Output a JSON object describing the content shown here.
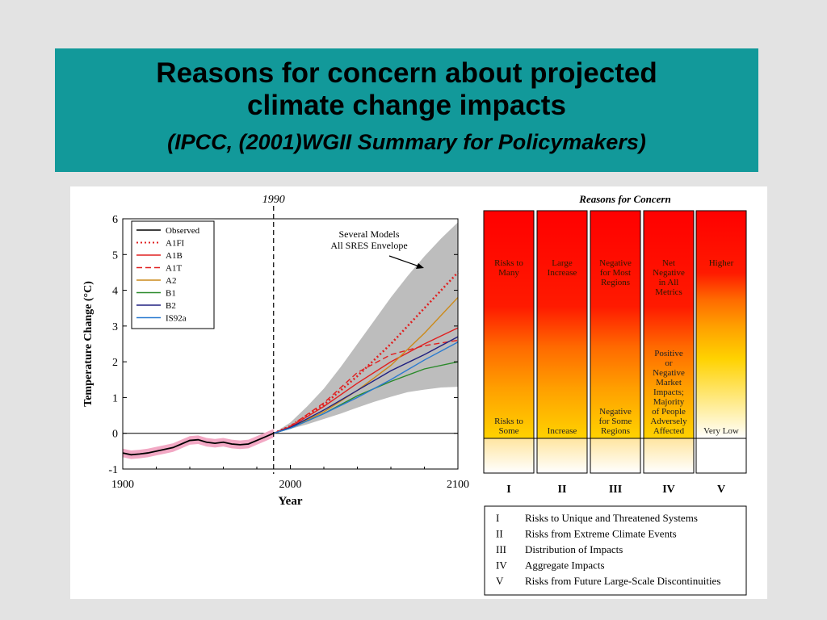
{
  "title": {
    "line1": "Reasons for concern about projected",
    "line2": "climate change impacts",
    "subtitle": "(IPCC, (2001)WGII Summary for Policymakers)"
  },
  "chart_data": [
    {
      "type": "line",
      "xlabel": "Year",
      "ylabel": "Temperature Change (°C)",
      "xlim": [
        1900,
        2100
      ],
      "ylim": [
        -1,
        6
      ],
      "x_ticks": [
        1900,
        2000,
        2100
      ],
      "y_ticks": [
        -1,
        0,
        1,
        2,
        3,
        4,
        5,
        6
      ],
      "marker_line": {
        "x": 1990,
        "label": "1990"
      },
      "annotation": {
        "line1": "Several Models",
        "line2": "All SRES Envelope"
      },
      "legend_position": "top-left",
      "envelope": {
        "x": [
          1990,
          2000,
          2010,
          2020,
          2030,
          2040,
          2050,
          2060,
          2070,
          2080,
          2090,
          2100
        ],
        "upper": [
          0,
          0.3,
          0.75,
          1.25,
          1.85,
          2.5,
          3.15,
          3.8,
          4.4,
          4.95,
          5.45,
          5.9
        ],
        "lower": [
          0,
          0.12,
          0.25,
          0.4,
          0.55,
          0.72,
          0.88,
          1.02,
          1.15,
          1.22,
          1.28,
          1.3
        ]
      },
      "observed": {
        "x": [
          1900,
          1905,
          1910,
          1915,
          1920,
          1925,
          1930,
          1935,
          1940,
          1945,
          1950,
          1955,
          1960,
          1965,
          1970,
          1975,
          1980,
          1985,
          1990
        ],
        "y": [
          -0.55,
          -0.6,
          -0.58,
          -0.55,
          -0.5,
          -0.45,
          -0.4,
          -0.3,
          -0.2,
          -0.18,
          -0.25,
          -0.28,
          -0.25,
          -0.3,
          -0.32,
          -0.3,
          -0.2,
          -0.1,
          0
        ]
      },
      "series": [
        {
          "name": "Observed",
          "color": "#000000",
          "dash": "solid",
          "values": []
        },
        {
          "name": "A1FI",
          "color": "#e02020",
          "dash": "dotted",
          "x": [
            1990,
            2000,
            2020,
            2040,
            2060,
            2080,
            2100
          ],
          "values": [
            0,
            0.2,
            0.8,
            1.6,
            2.5,
            3.5,
            4.5
          ]
        },
        {
          "name": "A1B",
          "color": "#e02020",
          "dash": "solid",
          "x": [
            1990,
            2000,
            2020,
            2040,
            2060,
            2080,
            2100
          ],
          "values": [
            0,
            0.18,
            0.75,
            1.4,
            2.0,
            2.5,
            2.95
          ]
        },
        {
          "name": "A1T",
          "color": "#e02020",
          "dash": "dashed",
          "x": [
            1990,
            2000,
            2020,
            2040,
            2060,
            2080,
            2100
          ],
          "values": [
            0,
            0.2,
            0.85,
            1.7,
            2.2,
            2.45,
            2.6
          ]
        },
        {
          "name": "A2",
          "color": "#cc8a1a",
          "dash": "solid",
          "x": [
            1990,
            2000,
            2020,
            2040,
            2060,
            2080,
            2100
          ],
          "values": [
            0,
            0.15,
            0.6,
            1.2,
            1.9,
            2.8,
            3.8
          ]
        },
        {
          "name": "B1",
          "color": "#2a8a2a",
          "dash": "solid",
          "x": [
            1990,
            2000,
            2020,
            2040,
            2060,
            2080,
            2100
          ],
          "values": [
            0,
            0.14,
            0.55,
            1.05,
            1.45,
            1.8,
            2.0
          ]
        },
        {
          "name": "B2",
          "color": "#202080",
          "dash": "solid",
          "x": [
            1990,
            2000,
            2020,
            2040,
            2060,
            2080,
            2100
          ],
          "values": [
            0,
            0.16,
            0.65,
            1.2,
            1.75,
            2.2,
            2.7
          ]
        },
        {
          "name": "IS92a",
          "color": "#2a7ad0",
          "dash": "solid",
          "x": [
            1990,
            2000,
            2020,
            2040,
            2060,
            2080,
            2100
          ],
          "values": [
            0,
            0.14,
            0.55,
            1.0,
            1.5,
            2.05,
            2.55
          ]
        }
      ]
    },
    {
      "type": "table",
      "title": "Reasons for Concern",
      "columns": [
        {
          "numeral": "I",
          "top_label": "Risks to Many",
          "bottom_label": "Risks to Some",
          "white_from": 1.0
        },
        {
          "numeral": "II",
          "top_label": "Large Increase",
          "bottom_label": "Increase",
          "white_from": 1.0
        },
        {
          "numeral": "III",
          "top_label": "Negative for Most Regions",
          "bottom_label": "Negative for Some Regions",
          "white_from": 1.0
        },
        {
          "numeral": "IV",
          "top_label": "Net Negative in All Metrics",
          "bottom_label": "Positive or Negative Market Impacts; Majority of People Adversely Affected",
          "white_from": 1.0
        },
        {
          "numeral": "V",
          "top_label": "Higher",
          "bottom_label": "Very Low",
          "white_from": 0.65
        }
      ],
      "legend": [
        {
          "numeral": "I",
          "text": "Risks to Unique and Threatened Systems"
        },
        {
          "numeral": "II",
          "text": "Risks from Extreme Climate Events"
        },
        {
          "numeral": "III",
          "text": "Distribution of Impacts"
        },
        {
          "numeral": "IV",
          "text": "Aggregate Impacts"
        },
        {
          "numeral": "V",
          "text": "Risks from Future Large-Scale Discontinuities"
        }
      ]
    }
  ]
}
